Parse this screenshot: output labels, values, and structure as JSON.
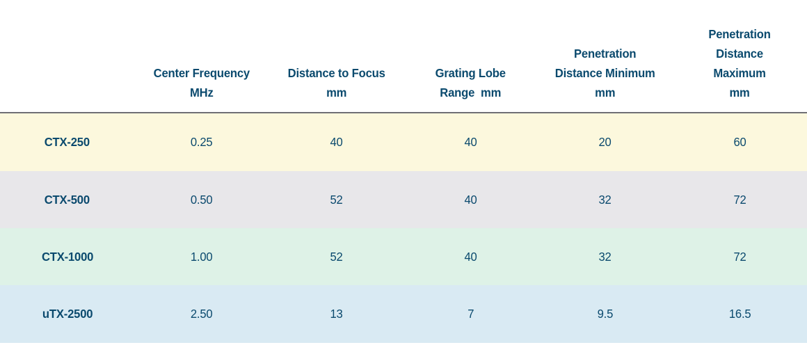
{
  "theme": {
    "text_color": "#0b4a6e",
    "divider_color": "#6f6f74",
    "page_background": "#ffffff",
    "row_colors": {
      "ctx_250": "#fcf8dd",
      "ctx_500": "#e8e7ea",
      "ctx_1000": "#def2e7",
      "utx_2500": "#d9eaf3"
    }
  },
  "table": {
    "columns": [
      {
        "id": "model",
        "label": ""
      },
      {
        "id": "center_frequency",
        "label": "Center Frequency\nMHz"
      },
      {
        "id": "distance_to_focus",
        "label": "Distance to Focus\nmm"
      },
      {
        "id": "grating_lobe_range",
        "label": "Grating Lobe\nRange  mm"
      },
      {
        "id": "penetration_distance_minimum",
        "label": "Penetration\nDistance Minimum\nmm"
      },
      {
        "id": "penetration_distance_maximum",
        "label": "Penetration\nDistance\nMaximum\nmm"
      }
    ],
    "rows": [
      {
        "model": "CTX-250",
        "values": [
          "0.25",
          "40",
          "40",
          "20",
          "60"
        ],
        "bg": "#fcf8dd"
      },
      {
        "model": "CTX-500",
        "values": [
          "0.50",
          "52",
          "40",
          "32",
          "72"
        ],
        "bg": "#e8e7ea"
      },
      {
        "model": "CTX-1000",
        "values": [
          "1.00",
          "52",
          "40",
          "32",
          "72"
        ],
        "bg": "#def2e7"
      },
      {
        "model": "uTX-2500",
        "values": [
          "2.50",
          "13",
          "7",
          "9.5",
          "16.5"
        ],
        "bg": "#d9eaf3"
      }
    ]
  },
  "chart_data": {
    "type": "table",
    "title": "",
    "categories": [
      "CTX-250",
      "CTX-500",
      "CTX-1000",
      "uTX-2500"
    ],
    "series": [
      {
        "name": "Center Frequency MHz",
        "values": [
          0.25,
          0.5,
          1.0,
          2.5
        ]
      },
      {
        "name": "Distance to Focus mm",
        "values": [
          40,
          52,
          52,
          13
        ]
      },
      {
        "name": "Grating Lobe Range mm",
        "values": [
          40,
          40,
          40,
          7
        ]
      },
      {
        "name": "Penetration Distance Minimum mm",
        "values": [
          20,
          32,
          32,
          9.5
        ]
      },
      {
        "name": "Penetration Distance Maximum mm",
        "values": [
          60,
          72,
          72,
          16.5
        ]
      }
    ]
  }
}
